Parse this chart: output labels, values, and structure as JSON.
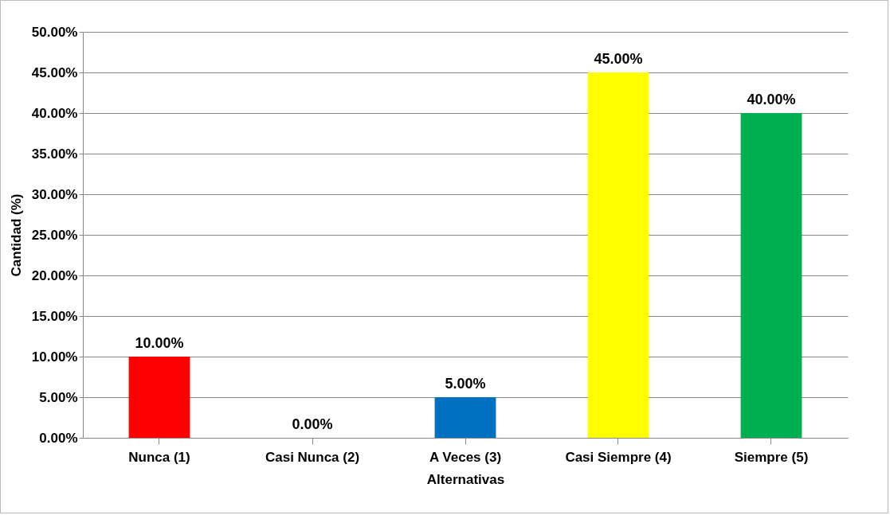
{
  "chart_data": {
    "type": "bar",
    "xlabel": "Alternativas",
    "ylabel": "Cantidad (%)",
    "categories": [
      "Nunca (1)",
      "Casi Nunca (2)",
      "A Veces (3)",
      "Casi Siempre (4)",
      "Siempre (5)"
    ],
    "values": [
      10,
      0,
      5,
      45,
      40
    ],
    "colors": [
      "#ff0000",
      "#ffc000",
      "#0070c0",
      "#ffff00",
      "#00b050"
    ],
    "value_labels": [
      "10.00%",
      "0.00%",
      "5.00%",
      "45.00%",
      "40.00%"
    ],
    "ylim": [
      0,
      50
    ],
    "yticks": [
      {
        "value": 0,
        "label": "0.00%"
      },
      {
        "value": 5,
        "label": "5.00%"
      },
      {
        "value": 10,
        "label": "10.00%"
      },
      {
        "value": 15,
        "label": "15.00%"
      },
      {
        "value": 20,
        "label": "20.00%"
      },
      {
        "value": 25,
        "label": "25.00%"
      },
      {
        "value": 30,
        "label": "30.00%"
      },
      {
        "value": 35,
        "label": "35.00%"
      },
      {
        "value": 40,
        "label": "40.00%"
      },
      {
        "value": 45,
        "label": "45.00%"
      },
      {
        "value": 50,
        "label": "50.00%"
      }
    ],
    "grid": "y",
    "legend": false
  }
}
